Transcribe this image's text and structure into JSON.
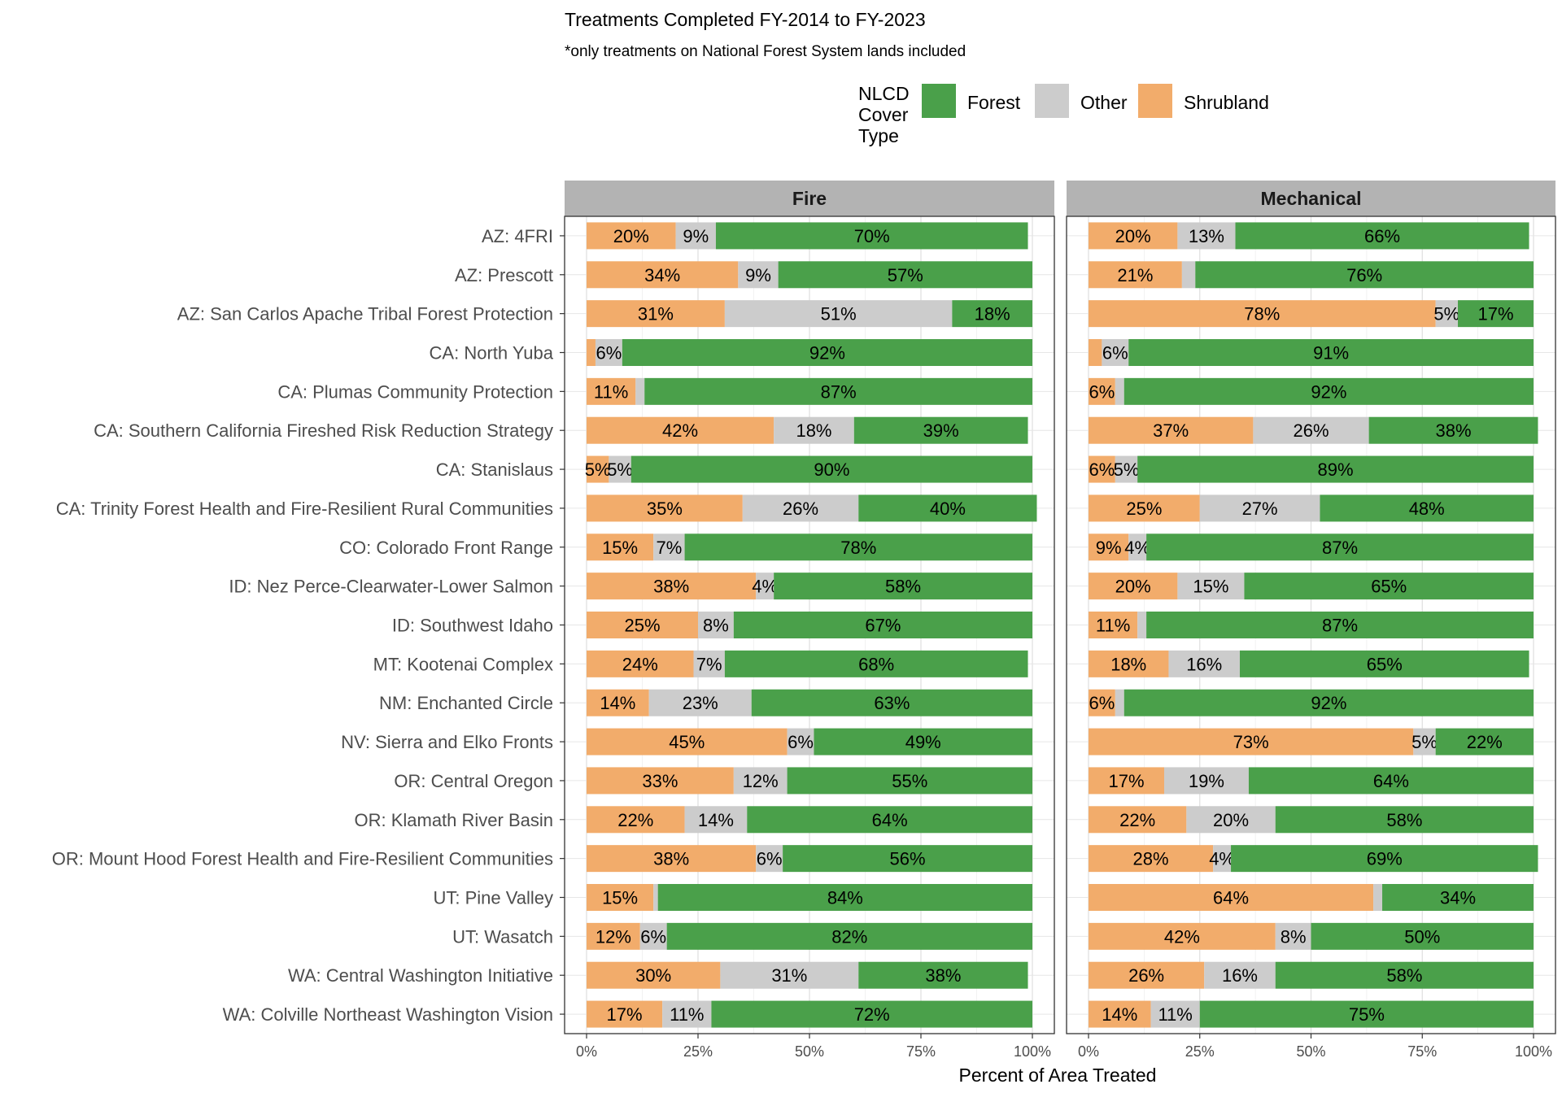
{
  "chart_data": {
    "type": "bar",
    "orientation": "horizontal",
    "stacked": true,
    "title": "Treatments Completed FY-2014 to FY-2023",
    "subtitle": "*only treatments on National Forest System lands included",
    "xlabel": "Percent of Area Treated",
    "ylabel": "",
    "xlim": [
      0,
      100
    ],
    "x_ticks": [
      "0%",
      "25%",
      "50%",
      "75%",
      "100%"
    ],
    "grid": true,
    "legend": {
      "title": "NLCD Cover Type",
      "title_lines": [
        "NLCD",
        "Cover",
        "Type"
      ],
      "position": "top",
      "entries": [
        {
          "name": "Forest",
          "color": "#4aa04a"
        },
        {
          "name": "Other",
          "color": "#cccccc"
        },
        {
          "name": "Shrubland",
          "color": "#f2ac6b"
        }
      ]
    },
    "stack_order": [
      "Shrubland",
      "Other",
      "Forest"
    ],
    "colors": {
      "Shrubland": "#f2ac6b",
      "Other": "#cccccc",
      "Forest": "#4aa04a"
    },
    "categories": [
      "AZ: 4FRI",
      "AZ: Prescott",
      "AZ: San Carlos Apache Tribal Forest Protection",
      "CA: North Yuba",
      "CA: Plumas Community Protection",
      "CA: Southern California Fireshed Risk Reduction Strategy",
      "CA: Stanislaus",
      "CA: Trinity Forest Health and Fire-Resilient Rural Communities",
      "CO: Colorado Front Range",
      "ID: Nez Perce-Clearwater-Lower Salmon",
      "ID: Southwest Idaho",
      "MT: Kootenai Complex",
      "NM: Enchanted Circle",
      "NV: Sierra and Elko Fronts",
      "OR: Central Oregon",
      "OR: Klamath River Basin",
      "OR: Mount Hood Forest Health and Fire-Resilient Communities",
      "UT: Pine Valley",
      "UT: Wasatch",
      "WA: Central Washington Initiative",
      "WA: Colville Northeast Washington Vision"
    ],
    "panels": [
      {
        "name": "Fire",
        "series": [
          {
            "name": "Shrubland",
            "values": [
              20,
              34,
              31,
              2,
              11,
              42,
              5,
              35,
              15,
              38,
              25,
              24,
              14,
              45,
              33,
              22,
              38,
              15,
              12,
              30,
              17
            ],
            "labels": [
              "20%",
              "34%",
              "31%",
              "",
              "11%",
              "42%",
              "5%",
              "35%",
              "15%",
              "38%",
              "25%",
              "24%",
              "14%",
              "45%",
              "33%",
              "22%",
              "38%",
              "15%",
              "12%",
              "30%",
              "17%"
            ]
          },
          {
            "name": "Other",
            "values": [
              9,
              9,
              51,
              6,
              2,
              18,
              5,
              26,
              7,
              4,
              8,
              7,
              23,
              6,
              12,
              14,
              6,
              1,
              6,
              31,
              11
            ],
            "labels": [
              "9%",
              "9%",
              "51%",
              "6%",
              "",
              "18%",
              "5%",
              "26%",
              "7%",
              "4%",
              "8%",
              "7%",
              "23%",
              "6%",
              "12%",
              "14%",
              "6%",
              "",
              "6%",
              "31%",
              "11%"
            ]
          },
          {
            "name": "Forest",
            "values": [
              70,
              57,
              18,
              92,
              87,
              39,
              90,
              40,
              78,
              58,
              67,
              68,
              63,
              49,
              55,
              64,
              56,
              84,
              82,
              38,
              72
            ],
            "labels": [
              "70%",
              "57%",
              "18%",
              "92%",
              "87%",
              "39%",
              "90%",
              "40%",
              "78%",
              "58%",
              "67%",
              "68%",
              "63%",
              "49%",
              "55%",
              "64%",
              "56%",
              "84%",
              "82%",
              "38%",
              "72%"
            ]
          }
        ]
      },
      {
        "name": "Mechanical",
        "series": [
          {
            "name": "Shrubland",
            "values": [
              20,
              21,
              78,
              3,
              6,
              37,
              6,
              25,
              9,
              20,
              11,
              18,
              6,
              73,
              17,
              22,
              28,
              64,
              42,
              26,
              14
            ],
            "labels": [
              "20%",
              "21%",
              "78%",
              "",
              "6%",
              "37%",
              "6%",
              "25%",
              "9%",
              "20%",
              "11%",
              "18%",
              "6%",
              "73%",
              "17%",
              "22%",
              "28%",
              "64%",
              "42%",
              "26%",
              "14%"
            ]
          },
          {
            "name": "Other",
            "values": [
              13,
              3,
              5,
              6,
              2,
              26,
              5,
              27,
              4,
              15,
              2,
              16,
              2,
              5,
              19,
              20,
              4,
              2,
              8,
              16,
              11
            ],
            "labels": [
              "13%",
              "",
              "5%",
              "6%",
              "",
              "26%",
              "5%",
              "27%",
              "4%",
              "15%",
              "",
              "16%",
              "",
              "5%",
              "19%",
              "20%",
              "4%",
              "",
              "8%",
              "16%",
              "11%"
            ]
          },
          {
            "name": "Forest",
            "values": [
              66,
              76,
              17,
              91,
              92,
              38,
              89,
              48,
              87,
              65,
              87,
              65,
              92,
              22,
              64,
              58,
              69,
              34,
              50,
              58,
              75
            ],
            "labels": [
              "66%",
              "76%",
              "17%",
              "91%",
              "92%",
              "38%",
              "89%",
              "48%",
              "87%",
              "65%",
              "87%",
              "65%",
              "92%",
              "22%",
              "64%",
              "58%",
              "69%",
              "34%",
              "50%",
              "58%",
              "75%"
            ]
          }
        ]
      }
    ]
  }
}
